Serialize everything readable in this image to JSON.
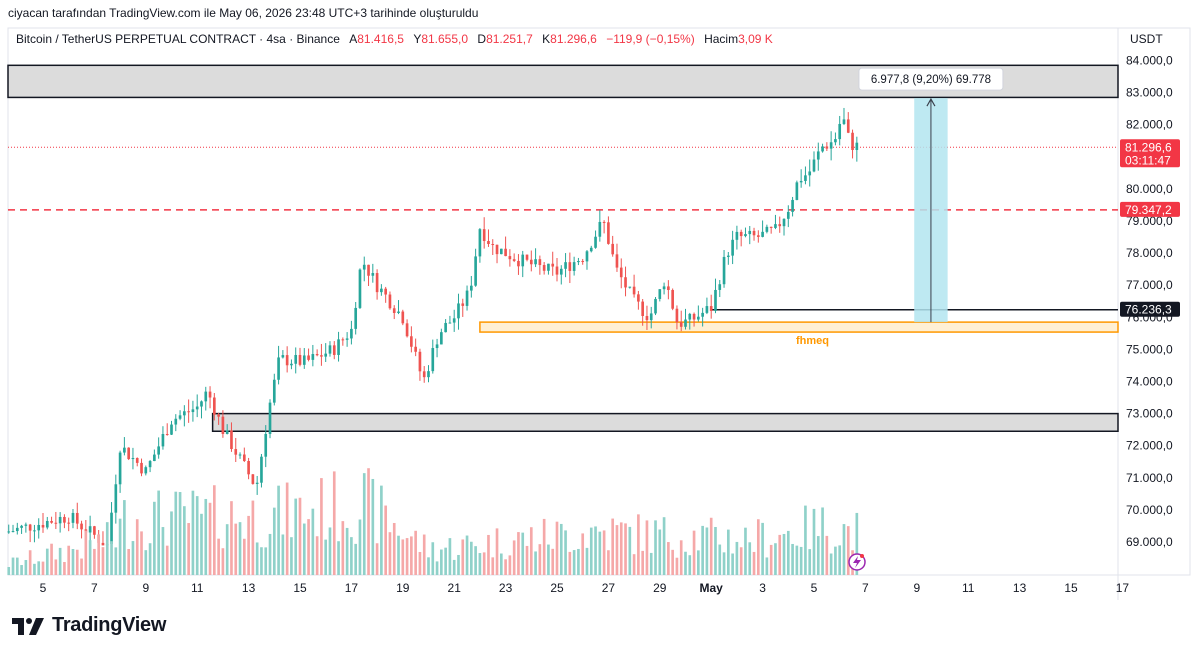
{
  "credit": "ciyacan tarafından TradingView.com ile May 06, 2026 23:48 UTC+3 tarihinde oluşturuldu",
  "header": {
    "symbol": "Bitcoin / TetherUS PERPETUAL CONTRACT · 4sa · Binance",
    "o_label": "A",
    "o_value": "81.416,5",
    "h_label": "Y",
    "h_value": "81.655,0",
    "l_label": "D",
    "l_value": "81.251,7",
    "c_label": "K",
    "c_value": "81.296,6",
    "change": "−119,9 (−0,15%)",
    "volume_label": "Hacim",
    "volume_value": "3,09 K",
    "currency": "USDT"
  },
  "logo": {
    "text": "TradingView",
    "icon": "tradingview-logo-icon"
  },
  "colors": {
    "up": "#26a69a",
    "down": "#ef5350",
    "up_vol": "#8fd1c9",
    "down_vol": "#f5a8a8",
    "accent_red": "#f23645",
    "fib_orange": "#ff9800",
    "measure_fill": "#b3e5f0",
    "zone_fill": "#dcdcdc"
  },
  "chart_data": {
    "type": "candlestick",
    "ylim": [
      68000,
      84400
    ],
    "y_ticks": [
      "84.000,0",
      "83.000,0",
      "82.000,0",
      "81.000,0",
      "80.000,0",
      "79.000,0",
      "78.000,0",
      "77.000,0",
      "76.000,0",
      "75.000,0",
      "74.000,0",
      "73.000,0",
      "72.000,0",
      "71.000,0",
      "70.000,0",
      "69.000,0"
    ],
    "x_ticks": [
      "5",
      "7",
      "9",
      "11",
      "13",
      "15",
      "17",
      "19",
      "21",
      "23",
      "25",
      "27",
      "29",
      "May",
      "3",
      "5",
      "7",
      "9",
      "11",
      "13",
      "15",
      "17"
    ],
    "price_anchors": [
      [
        3.5,
        69300
      ],
      [
        6,
        69800
      ],
      [
        7.5,
        68900
      ],
      [
        8,
        72000
      ],
      [
        9,
        71200
      ],
      [
        10,
        72800
      ],
      [
        11,
        73200
      ],
      [
        11.4,
        73700
      ],
      [
        12,
        72500
      ],
      [
        13.3,
        70700
      ],
      [
        13.8,
        73200
      ],
      [
        14.2,
        74700
      ],
      [
        15.2,
        74600
      ],
      [
        16.3,
        75000
      ],
      [
        17,
        75600
      ],
      [
        17.4,
        77800
      ],
      [
        18,
        77000
      ],
      [
        19,
        76000
      ],
      [
        19.8,
        74000
      ],
      [
        20.4,
        75500
      ],
      [
        21,
        76000
      ],
      [
        21.6,
        76800
      ],
      [
        22,
        78800
      ],
      [
        22.5,
        78200
      ],
      [
        23.5,
        77800
      ],
      [
        24.5,
        77500
      ],
      [
        25,
        77400
      ],
      [
        26,
        77900
      ],
      [
        26.8,
        79000
      ],
      [
        27.3,
        77500
      ],
      [
        28,
        76500
      ],
      [
        28.6,
        76000
      ],
      [
        29.2,
        77200
      ],
      [
        29.7,
        75800
      ],
      [
        30.2,
        75900
      ],
      [
        31,
        76300
      ],
      [
        31.6,
        78000
      ],
      [
        32,
        78500
      ],
      [
        32.8,
        78500
      ],
      [
        33.5,
        78700
      ],
      [
        34,
        79400
      ],
      [
        34.4,
        80300
      ],
      [
        34.8,
        80500
      ],
      [
        35.3,
        81300
      ],
      [
        35.8,
        81500
      ],
      [
        36.1,
        82300
      ],
      [
        36.4,
        81400
      ],
      [
        36.8,
        81300
      ]
    ],
    "volume_anchors": [
      [
        3.5,
        4
      ],
      [
        7.8,
        14
      ],
      [
        8.2,
        22
      ],
      [
        14,
        23
      ],
      [
        17.5,
        28
      ],
      [
        20,
        10
      ],
      [
        26.5,
        17
      ],
      [
        30.2,
        15
      ],
      [
        32.5,
        14
      ],
      [
        35.6,
        19
      ],
      [
        36.3,
        17
      ]
    ],
    "resistance_zone": [
      82850,
      83850
    ],
    "support_zone": [
      72450,
      73000
    ],
    "fib_band": [
      75540,
      75850
    ],
    "fib_label": "fhmeq",
    "dashed_level": 79347.2,
    "level_line": 76236.3,
    "price_labels": [
      {
        "value": 81296.6,
        "text": "81.296,6",
        "sub": "03:11:47",
        "color": "#f23645"
      },
      {
        "value": 79347.2,
        "text": "79.347,2",
        "color": "#f23645"
      },
      {
        "value": 76236.3,
        "text": "76.236,3",
        "color": "#131722"
      }
    ],
    "measure": {
      "from": 75850,
      "to": 82828,
      "label": "6.977,8 (9,20%) 69.778"
    }
  }
}
